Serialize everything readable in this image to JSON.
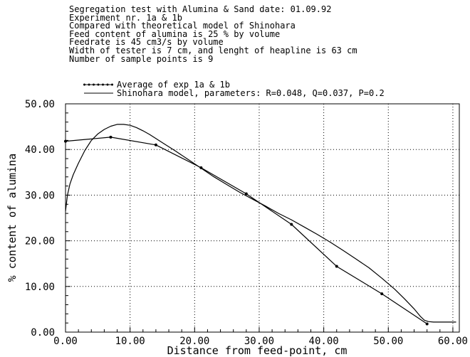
{
  "chart_data": {
    "type": "line",
    "header_lines": [
      "Segregation test with Alumina & Sand date: 01.09.92",
      "Experiment nr. 1a & 1b",
      "Compared with theoretical model of Shinohara",
      "Feed content of alumina is 25 % by volume",
      "Feedrate is 45 cm3/s by volume",
      "Width of tester is 7 cm, and lenght of heapline is 63 cm",
      "Number of sample points is 9"
    ],
    "xlabel": "Distance from feed-point, cm",
    "ylabel": "% content of alumina",
    "xlim": [
      0,
      61
    ],
    "ylim": [
      0,
      50
    ],
    "x_ticks": [
      "0.00",
      "10.00",
      "20.00",
      "30.00",
      "40.00",
      "50.00",
      "60.00"
    ],
    "y_ticks": [
      "0.00",
      "10.00",
      "20.00",
      "30.00",
      "40.00",
      "50.00"
    ],
    "grid": true,
    "legend_position": "top",
    "series": [
      {
        "name": "Average of exp 1a & 1b",
        "marker": "dot",
        "x": [
          0,
          7,
          14,
          21,
          28,
          35,
          42,
          49,
          56
        ],
        "y": [
          41.8,
          42.7,
          41.0,
          36.0,
          30.3,
          23.6,
          14.4,
          8.4,
          1.8
        ]
      },
      {
        "name": "Shinohara model, parameters: R=0.048, Q=0.037, P=0.2",
        "marker": "none",
        "x": [
          0,
          0.3,
          0.7,
          1.2,
          2,
          3,
          4,
          5,
          6,
          7,
          8,
          9,
          10,
          11,
          12,
          13,
          14,
          15,
          17,
          19,
          21,
          23,
          25,
          27,
          29,
          31,
          33,
          35,
          37,
          39,
          41,
          43,
          45,
          47,
          49,
          51,
          52.5,
          54,
          55,
          55.6,
          56.2,
          57,
          58,
          59,
          60.5
        ],
        "y": [
          26.5,
          30.0,
          32.5,
          34.5,
          37.0,
          39.8,
          42.0,
          43.4,
          44.4,
          45.1,
          45.5,
          45.5,
          45.3,
          44.8,
          44.1,
          43.3,
          42.4,
          41.5,
          39.7,
          37.8,
          35.9,
          34.0,
          32.3,
          30.6,
          29.1,
          27.6,
          26.0,
          24.6,
          23.0,
          21.4,
          19.7,
          17.9,
          16.0,
          14.1,
          11.8,
          9.4,
          7.3,
          5.1,
          3.4,
          2.6,
          2.3,
          2.2,
          2.2,
          2.2,
          2.2
        ]
      }
    ]
  }
}
